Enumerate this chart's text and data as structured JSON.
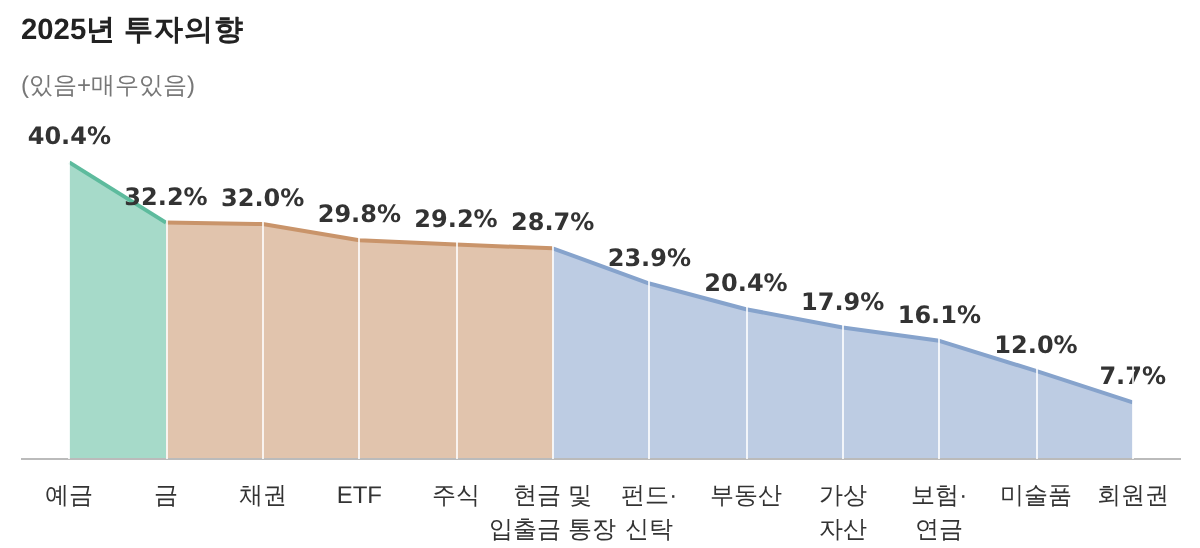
{
  "chart_data": {
    "type": "area",
    "title": "2025년 투자의향",
    "subtitle": "(있음+매우있음)",
    "categories": [
      "예금",
      "금",
      "채권",
      "ETF",
      "주식",
      "현금 및\n입출금 통장",
      "펀드·\n신탁",
      "부동산",
      "가상\n자산",
      "보험·\n연금",
      "미술품",
      "회원권"
    ],
    "series": [
      {
        "color": "#5dbb9d",
        "values": [
          40.4,
          32.2,
          null,
          null,
          null,
          null,
          null,
          null,
          null,
          null,
          null,
          null
        ],
        "value_labels": [
          "40.4%",
          "32.2%",
          null,
          null,
          null,
          null,
          null,
          null,
          null,
          null,
          null,
          null
        ]
      },
      {
        "color": "#c9946a",
        "values": [
          null,
          32.2,
          32.0,
          29.8,
          29.2,
          28.7,
          null,
          null,
          null,
          null,
          null,
          null
        ],
        "value_labels": [
          null,
          null,
          "32.0%",
          "29.8%",
          "29.2%",
          "28.7%",
          null,
          null,
          null,
          null,
          null,
          null
        ]
      },
      {
        "color": "#86a3cc",
        "values": [
          null,
          null,
          null,
          null,
          null,
          28.7,
          23.9,
          20.4,
          17.9,
          16.1,
          12.0,
          7.7
        ],
        "value_labels": [
          null,
          null,
          null,
          null,
          null,
          null,
          "23.9%",
          "20.4%",
          "17.9%",
          "16.1%",
          "12.0%",
          "7.7%"
        ]
      }
    ],
    "grid": "x"
  }
}
